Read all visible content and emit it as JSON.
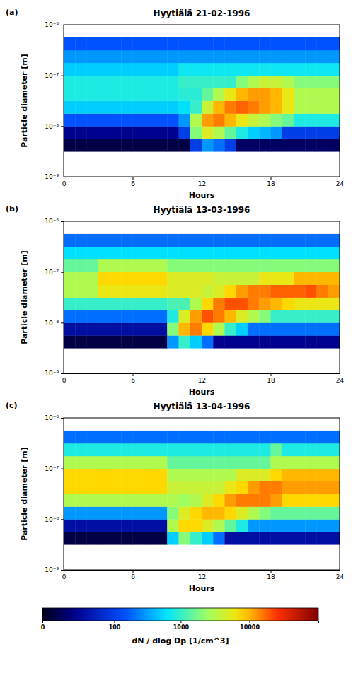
{
  "chart_data": [
    {
      "type": "heatmap",
      "panel_label": "(a)",
      "title": "Hyytiälä 21-02-1996",
      "x_label": "Hours",
      "y_label": "Particle diameter [m]",
      "log": "y",
      "xlim": [
        0,
        24
      ],
      "xticks": [
        0,
        6,
        12,
        18,
        24
      ],
      "ylim": [
        1e-09,
        1e-06
      ],
      "yticks": [
        {
          "value": 1e-09,
          "label": "10⁻⁹"
        },
        {
          "value": 1e-08,
          "label": "10⁻⁸"
        },
        {
          "value": 1e-07,
          "label": "10⁻⁷"
        },
        {
          "value": 1e-06,
          "label": "10⁻⁶"
        }
      ],
      "x": [
        0.5,
        1.5,
        2.5,
        3.5,
        4.5,
        5.5,
        6.5,
        7.5,
        8.5,
        9.5,
        10.5,
        11.5,
        12.5,
        13.5,
        14.5,
        15.5,
        16.5,
        17.5,
        18.5,
        19.5,
        20.5,
        21.5,
        22.5,
        23.5
      ],
      "y": [
        4.217e-09,
        7.499e-09,
        1.3335e-08,
        2.3714e-08,
        4.217e-08,
        7.499e-08,
        1.3335e-07,
        2.3714e-07,
        4.217e-07
      ],
      "cells": [
        [
          5,
          5,
          5,
          5,
          5,
          5,
          5,
          5,
          5,
          5,
          5,
          100,
          300,
          200,
          100,
          10,
          10,
          10,
          10,
          10,
          10,
          10,
          10,
          10
        ],
        [
          20,
          20,
          20,
          20,
          20,
          20,
          20,
          20,
          20,
          20,
          100,
          2000,
          5000,
          3000,
          1500,
          800,
          500,
          400,
          300,
          100,
          100,
          100,
          100,
          100
        ],
        [
          150,
          150,
          150,
          150,
          150,
          150,
          150,
          150,
          150,
          150,
          300,
          3000,
          12000,
          15000,
          10000,
          6000,
          4000,
          3000,
          2000,
          1500,
          800,
          800,
          800,
          800
        ],
        [
          500,
          500,
          500,
          500,
          500,
          500,
          500,
          500,
          500,
          500,
          600,
          1000,
          4000,
          10000,
          15000,
          18000,
          15000,
          12000,
          10000,
          6000,
          3000,
          3000,
          3000,
          3000
        ],
        [
          800,
          800,
          800,
          800,
          800,
          800,
          800,
          800,
          800,
          800,
          900,
          900,
          1500,
          3000,
          6000,
          10000,
          12000,
          12000,
          10000,
          6000,
          3000,
          3000,
          3000,
          3000
        ],
        [
          800,
          800,
          800,
          800,
          800,
          800,
          800,
          800,
          800,
          800,
          1000,
          1000,
          1000,
          1000,
          1000,
          2000,
          3000,
          4000,
          4000,
          3000,
          2000,
          2000,
          2000,
          2000
        ],
        [
          500,
          500,
          500,
          500,
          500,
          500,
          500,
          500,
          500,
          500,
          700,
          700,
          700,
          700,
          700,
          700,
          700,
          700,
          700,
          700,
          700,
          700,
          700,
          700
        ],
        [
          300,
          300,
          300,
          300,
          300,
          300,
          300,
          300,
          300,
          300,
          300,
          300,
          300,
          300,
          300,
          300,
          300,
          300,
          300,
          300,
          300,
          300,
          300,
          300
        ],
        [
          150,
          150,
          150,
          150,
          150,
          150,
          150,
          150,
          150,
          150,
          150,
          150,
          150,
          150,
          150,
          150,
          150,
          150,
          150,
          150,
          150,
          150,
          150,
          150
        ]
      ]
    },
    {
      "type": "heatmap",
      "panel_label": "(b)",
      "title": "Hyytiälä 13-03-1996",
      "x_label": "Hours",
      "y_label": "Particle diameter [m]",
      "log": "y",
      "xlim": [
        0,
        24
      ],
      "xticks": [
        0,
        6,
        12,
        18,
        24
      ],
      "ylim": [
        1e-09,
        1e-06
      ],
      "yticks": [
        {
          "value": 1e-09,
          "label": "10⁻⁹"
        },
        {
          "value": 1e-08,
          "label": "10⁻⁸"
        },
        {
          "value": 1e-07,
          "label": "10⁻⁷"
        },
        {
          "value": 1e-06,
          "label": "10⁻⁶"
        }
      ],
      "x": [
        0.5,
        1.5,
        2.5,
        3.5,
        4.5,
        5.5,
        6.5,
        7.5,
        8.5,
        9.5,
        10.5,
        11.5,
        12.5,
        13.5,
        14.5,
        15.5,
        16.5,
        17.5,
        18.5,
        19.5,
        20.5,
        21.5,
        22.5,
        23.5
      ],
      "y": [
        4.217e-09,
        7.499e-09,
        1.3335e-08,
        2.3714e-08,
        4.217e-08,
        7.499e-08,
        1.3335e-07,
        2.3714e-07,
        4.217e-07
      ],
      "cells": [
        [
          5,
          5,
          5,
          5,
          5,
          5,
          5,
          5,
          5,
          300,
          1000,
          500,
          200,
          20,
          20,
          20,
          20,
          20,
          20,
          20,
          20,
          20,
          20,
          20
        ],
        [
          30,
          30,
          30,
          30,
          30,
          30,
          30,
          30,
          30,
          2000,
          10000,
          15000,
          8000,
          3000,
          1000,
          500,
          200,
          200,
          200,
          200,
          200,
          200,
          200,
          200
        ],
        [
          200,
          200,
          200,
          200,
          200,
          200,
          200,
          200,
          200,
          800,
          5000,
          12000,
          20000,
          15000,
          10000,
          5000,
          3000,
          2000,
          1000,
          1000,
          1000,
          1000,
          1000,
          1000
        ],
        [
          1000,
          1000,
          1000,
          1000,
          1000,
          1000,
          1000,
          1000,
          1000,
          1200,
          1200,
          3000,
          8000,
          15000,
          20000,
          20000,
          15000,
          12000,
          10000,
          8000,
          6000,
          6000,
          6000,
          6000
        ],
        [
          3000,
          3000,
          3000,
          6000,
          6000,
          6000,
          6000,
          6000,
          6000,
          5000,
          5000,
          5000,
          4000,
          5000,
          8000,
          12000,
          15000,
          15000,
          18000,
          18000,
          18000,
          20000,
          15000,
          12000
        ],
        [
          3000,
          3000,
          3000,
          8000,
          8000,
          8000,
          8000,
          8000,
          8000,
          5000,
          5000,
          5000,
          5000,
          4000,
          4000,
          4000,
          4000,
          6000,
          6000,
          6000,
          10000,
          10000,
          10000,
          10000
        ],
        [
          1500,
          1500,
          1500,
          3000,
          3000,
          3000,
          3000,
          3000,
          3000,
          2000,
          2000,
          2000,
          2000,
          2000,
          2000,
          2000,
          2000,
          2000,
          2000,
          2000,
          2000,
          2000,
          2000,
          2000
        ],
        [
          600,
          600,
          600,
          600,
          600,
          600,
          600,
          600,
          600,
          600,
          600,
          600,
          600,
          600,
          600,
          600,
          600,
          600,
          600,
          600,
          600,
          600,
          600,
          600
        ],
        [
          200,
          200,
          200,
          200,
          200,
          200,
          200,
          200,
          200,
          200,
          200,
          200,
          200,
          200,
          200,
          200,
          200,
          200,
          200,
          200,
          200,
          200,
          200,
          200
        ]
      ]
    },
    {
      "type": "heatmap",
      "panel_label": "(c)",
      "title": "Hyytiälä 13-04-1996",
      "x_label": "Hours",
      "y_label": "Particle diameter [m]",
      "log": "y",
      "xlim": [
        0,
        24
      ],
      "xticks": [
        0,
        6,
        12,
        18,
        24
      ],
      "ylim": [
        1e-09,
        1e-06
      ],
      "yticks": [
        {
          "value": 1e-09,
          "label": "10⁻⁹"
        },
        {
          "value": 1e-08,
          "label": "10⁻⁸"
        },
        {
          "value": 1e-07,
          "label": "10⁻⁷"
        },
        {
          "value": 1e-06,
          "label": "10⁻⁶"
        }
      ],
      "x": [
        0.5,
        1.5,
        2.5,
        3.5,
        4.5,
        5.5,
        6.5,
        7.5,
        8.5,
        9.5,
        10.5,
        11.5,
        12.5,
        13.5,
        14.5,
        15.5,
        16.5,
        17.5,
        18.5,
        19.5,
        20.5,
        21.5,
        22.5,
        23.5
      ],
      "y": [
        4.217e-09,
        7.499e-09,
        1.3335e-08,
        2.3714e-08,
        4.217e-08,
        7.499e-08,
        1.3335e-07,
        2.3714e-07,
        4.217e-07
      ],
      "cells": [
        [
          5,
          5,
          5,
          5,
          5,
          5,
          5,
          5,
          5,
          500,
          2000,
          1000,
          500,
          200,
          30,
          30,
          30,
          30,
          30,
          30,
          30,
          30,
          30,
          30
        ],
        [
          30,
          30,
          30,
          30,
          30,
          30,
          30,
          30,
          30,
          3000,
          8000,
          8000,
          5000,
          3000,
          1500,
          800,
          300,
          300,
          300,
          300,
          300,
          300,
          300,
          300
        ],
        [
          300,
          300,
          300,
          300,
          300,
          300,
          300,
          300,
          300,
          2000,
          5000,
          8000,
          10000,
          10000,
          8000,
          5000,
          3000,
          2000,
          1500,
          1500,
          1500,
          1500,
          1500,
          1500
        ],
        [
          3000,
          3000,
          3000,
          3000,
          3000,
          3000,
          3000,
          3000,
          3000,
          3000,
          2500,
          3000,
          5000,
          8000,
          12000,
          15000,
          15000,
          15000,
          12000,
          8000,
          8000,
          8000,
          8000,
          8000
        ],
        [
          8000,
          8000,
          8000,
          8000,
          8000,
          8000,
          8000,
          8000,
          8000,
          4000,
          4000,
          4000,
          4000,
          4000,
          6000,
          8000,
          12000,
          15000,
          15000,
          12000,
          12000,
          12000,
          12000,
          12000
        ],
        [
          8000,
          8000,
          8000,
          8000,
          8000,
          8000,
          8000,
          8000,
          8000,
          3000,
          3000,
          3000,
          3000,
          3000,
          3000,
          5000,
          5000,
          5000,
          8000,
          10000,
          10000,
          10000,
          10000,
          10000
        ],
        [
          3000,
          3000,
          3000,
          3000,
          3000,
          3000,
          3000,
          3000,
          3000,
          1500,
          1500,
          1500,
          1500,
          1500,
          1500,
          1500,
          1500,
          1500,
          3000,
          3000,
          3000,
          3000,
          3000,
          3000
        ],
        [
          800,
          800,
          800,
          800,
          800,
          800,
          800,
          800,
          800,
          800,
          800,
          800,
          800,
          800,
          800,
          800,
          800,
          800,
          1500,
          800,
          800,
          800,
          800,
          800
        ],
        [
          200,
          200,
          200,
          200,
          200,
          200,
          200,
          200,
          200,
          200,
          200,
          200,
          200,
          200,
          200,
          200,
          200,
          200,
          200,
          200,
          200,
          200,
          200,
          200
        ]
      ]
    }
  ],
  "colorbar": {
    "label": "dN / dlog Dp [1/cm^3]",
    "log": true,
    "range": [
      0,
      100000
    ],
    "ticks": [
      0,
      100,
      1000,
      10000
    ]
  }
}
